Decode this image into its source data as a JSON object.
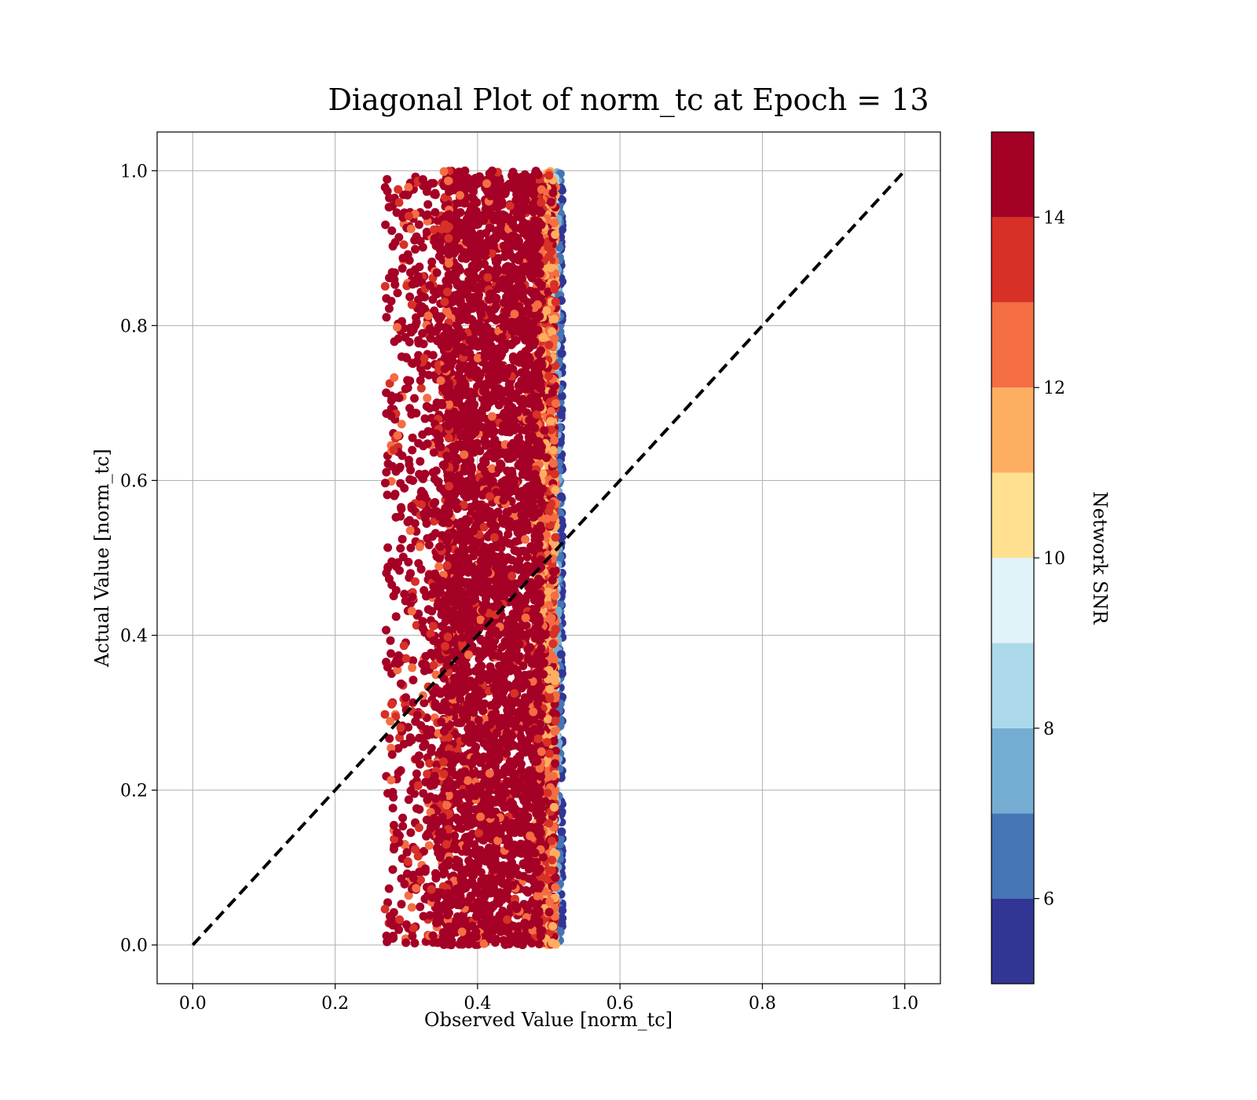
{
  "chart_data": {
    "type": "scatter",
    "title": "Diagonal Plot of norm_tc at Epoch = 13",
    "xlabel": "Observed Value [norm_tc]",
    "ylabel": "Actual Value [norm_tc]",
    "xlim": [
      -0.05,
      1.05
    ],
    "ylim": [
      -0.05,
      1.05
    ],
    "xticks": [
      0.0,
      0.2,
      0.4,
      0.6,
      0.8,
      1.0
    ],
    "xtick_labels": [
      "0.0",
      "0.2",
      "0.4",
      "0.6",
      "0.8",
      "1.0"
    ],
    "yticks": [
      0.0,
      0.2,
      0.4,
      0.6,
      0.8,
      1.0
    ],
    "ytick_labels": [
      "0.0",
      "0.2",
      "0.4",
      "0.6",
      "0.8",
      "1.0"
    ],
    "grid": true,
    "reference_line": {
      "x": [
        0.0,
        1.0
      ],
      "y": [
        0.0,
        1.0
      ],
      "style": "dashed",
      "color": "#000000"
    },
    "point_cloud": {
      "x_range": [
        0.27,
        0.52
      ],
      "x_core_range": [
        0.36,
        0.5
      ],
      "y_range": [
        0.0,
        1.0
      ],
      "color_by": "Network SNR",
      "approx_points": 9000
    },
    "colorbar": {
      "label": "Network SNR",
      "range": [
        5,
        15
      ],
      "boundaries": [
        5,
        6,
        7,
        8,
        9,
        10,
        11,
        12,
        13,
        14,
        15
      ],
      "colors": [
        "#313695",
        "#4575b4",
        "#74add1",
        "#abd9e9",
        "#e0f3f8",
        "#fee090",
        "#fdae61",
        "#f46d43",
        "#d73027",
        "#a50026"
      ],
      "ticks": [
        6,
        8,
        10,
        12,
        14
      ],
      "tick_labels": [
        "6",
        "8",
        "10",
        "12",
        "14"
      ]
    }
  }
}
